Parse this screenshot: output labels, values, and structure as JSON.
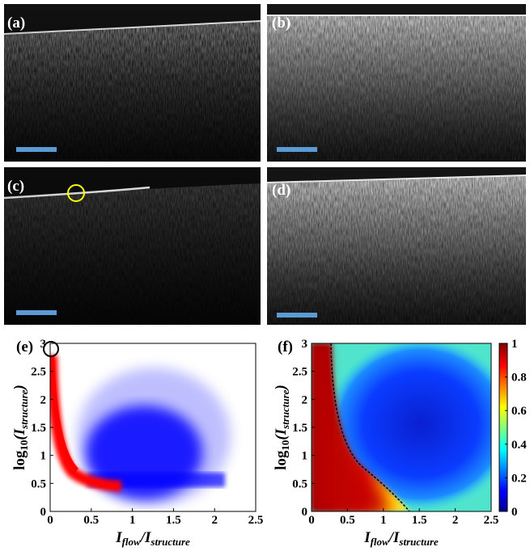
{
  "panels": {
    "a": "(a)",
    "b": "(b)",
    "c": "(c)",
    "d": "(d)"
  },
  "plots": [
    {
      "label": "(e)",
      "xlim": [
        0,
        2.5
      ],
      "ylim": [
        0,
        3
      ],
      "xticks": [
        0,
        0.5,
        1,
        1.5,
        2,
        2.5
      ],
      "yticks": [
        0,
        0.5,
        1,
        1.5,
        2,
        2.5,
        3
      ],
      "x_label": {
        "i1": "I",
        "s1": "flow",
        "i2": "/I",
        "s2": "structure"
      },
      "y_label": {
        "log": "log",
        "base": "10",
        "i1": "(I",
        "s1": "structure",
        "close": ")"
      }
    },
    {
      "label": "(f)",
      "xlim": [
        0,
        2.5
      ],
      "ylim": [
        0,
        3
      ],
      "xticks": [
        0,
        0.5,
        1,
        1.5,
        2,
        2.5
      ],
      "yticks": [
        0,
        0.5,
        1,
        1.5,
        2,
        2.5,
        3
      ],
      "x_label": {
        "i1": "I",
        "s1": "flow",
        "i2": "/I",
        "s2": "structure"
      },
      "y_label": {
        "log": "log",
        "base": "10",
        "i1": "(I",
        "s1": "structure",
        "close": ")"
      },
      "colorbar": {
        "lim": [
          0,
          1
        ],
        "ticks": [
          0,
          0.2,
          0.4,
          0.6,
          0.8,
          1
        ]
      }
    }
  ]
}
